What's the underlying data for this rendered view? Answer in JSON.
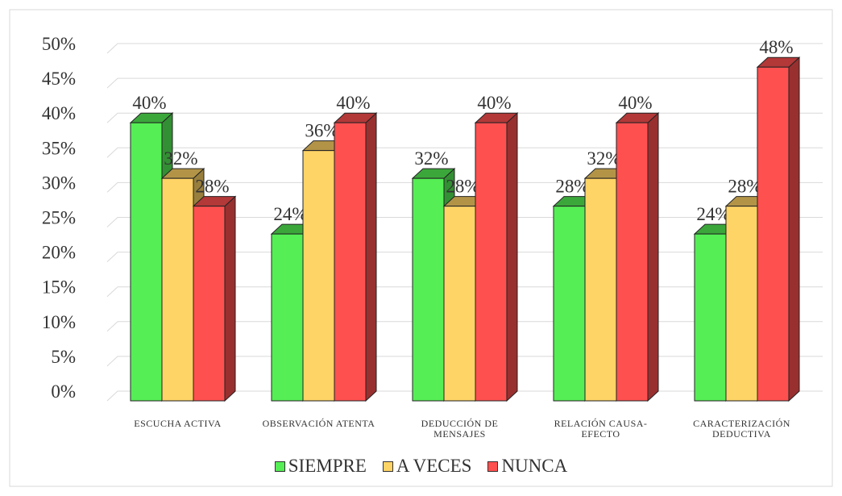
{
  "chart_data": {
    "type": "bar3d",
    "categories": [
      "ESCUCHA ACTIVA",
      "OBSERVACIÓN ATENTA",
      "DEDUCCIÓN DE MENSAJES",
      "RELACIÓN CAUSA-EFECTO",
      "CARACTERIZACIÓN DEDUCTIVA"
    ],
    "series": [
      {
        "name": "SIEMPRE",
        "color": "#55ee55",
        "values": [
          40,
          24,
          32,
          28,
          24
        ],
        "value_labels": [
          "40%",
          "24%",
          "32%",
          "28%",
          "24%"
        ]
      },
      {
        "name": "A VECES",
        "color": "#ffd466",
        "values": [
          32,
          36,
          28,
          32,
          28
        ],
        "value_labels": [
          "32%",
          "36%",
          "28%",
          "32%",
          "28%"
        ]
      },
      {
        "name": "NUNCA",
        "color": "#ff5050",
        "values": [
          28,
          40,
          40,
          40,
          48
        ],
        "value_labels": [
          "28%",
          "40%",
          "40%",
          "40%",
          "48%"
        ]
      }
    ],
    "ylim": [
      0,
      50
    ],
    "yticks": [
      {
        "value": 0,
        "label": "0%"
      },
      {
        "value": 5,
        "label": "5%"
      },
      {
        "value": 10,
        "label": "10%"
      },
      {
        "value": 15,
        "label": "15%"
      },
      {
        "value": 20,
        "label": "20%"
      },
      {
        "value": 25,
        "label": "25%"
      },
      {
        "value": 30,
        "label": "30%"
      },
      {
        "value": 35,
        "label": "35%"
      },
      {
        "value": 40,
        "label": "40%"
      },
      {
        "value": 45,
        "label": "45%"
      },
      {
        "value": 50,
        "label": "50%"
      }
    ],
    "grid": true,
    "legend": "bottom"
  }
}
